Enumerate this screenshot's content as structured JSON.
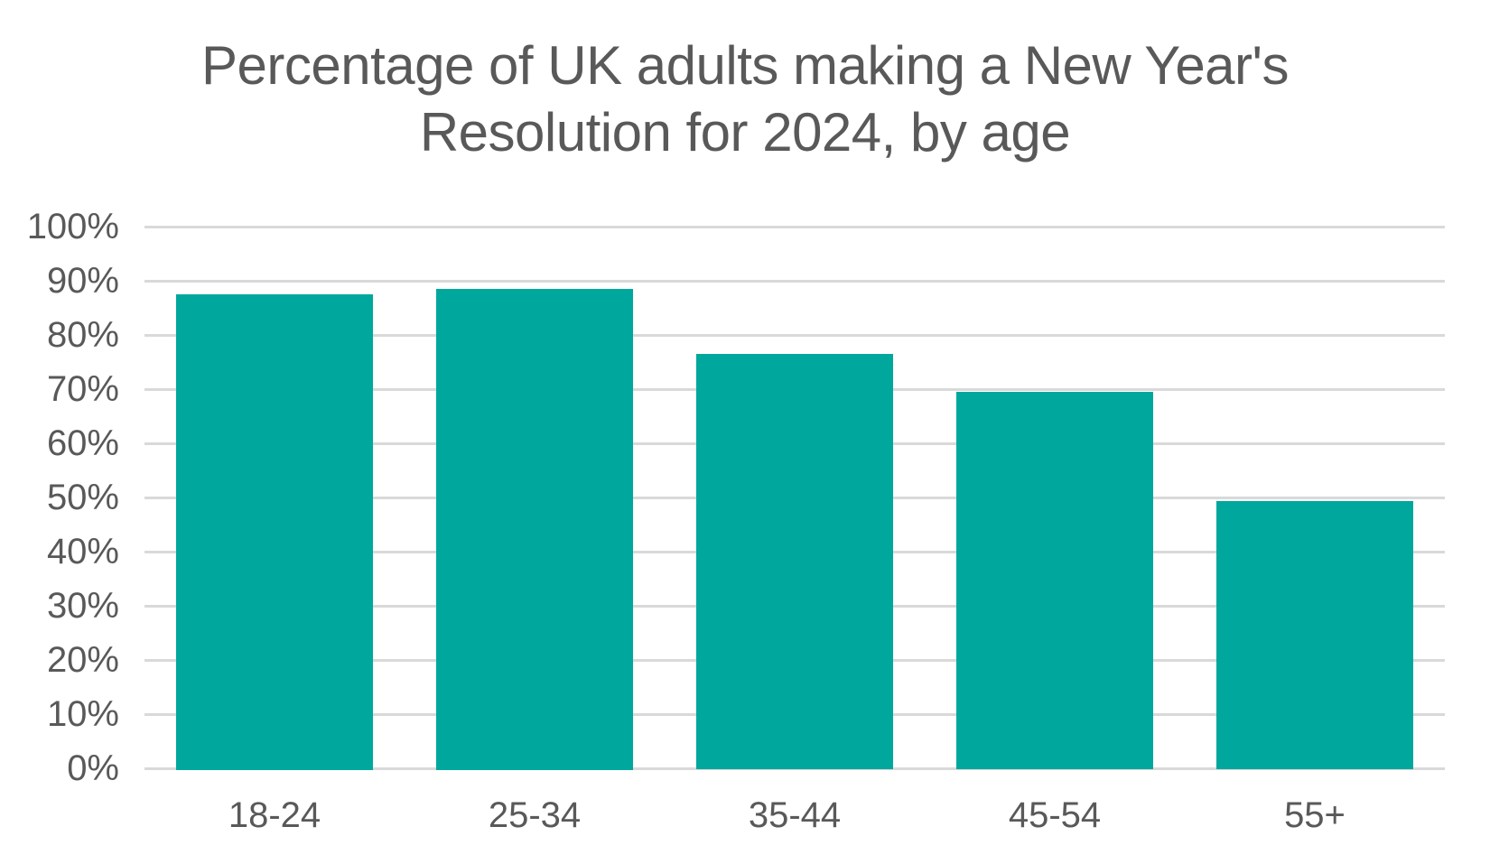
{
  "window": {
    "background": "#FFFFFF"
  },
  "header": {
    "title": "Percentage of UK adults making a New Year's Resolution for 2024, by age",
    "title_lines": [
      "Percentage of UK adults making a New Year's",
      "Resolution for 2024, by age"
    ]
  },
  "colors": {
    "bar": "#00A79D",
    "text": "#595959",
    "gridline": "#D9D9D9",
    "background": "#FFFFFF"
  },
  "chart_data": {
    "type": "bar",
    "title": "Percentage of UK adults making a New Year's Resolution for 2024, by age",
    "categories": [
      "18-24",
      "25-34",
      "35-44",
      "45-54",
      "55+"
    ],
    "values": [
      87.5,
      88.5,
      76.4,
      69.4,
      49.3
    ],
    "xlabel": "",
    "ylabel": "",
    "ylim": [
      0,
      100
    ],
    "ytick_step": 10,
    "ytick_labels": [
      "0%",
      "10%",
      "20%",
      "30%",
      "40%",
      "50%",
      "60%",
      "70%",
      "80%",
      "90%",
      "100%"
    ],
    "grid": true,
    "legend": false,
    "bar_color": "#00A79D"
  }
}
